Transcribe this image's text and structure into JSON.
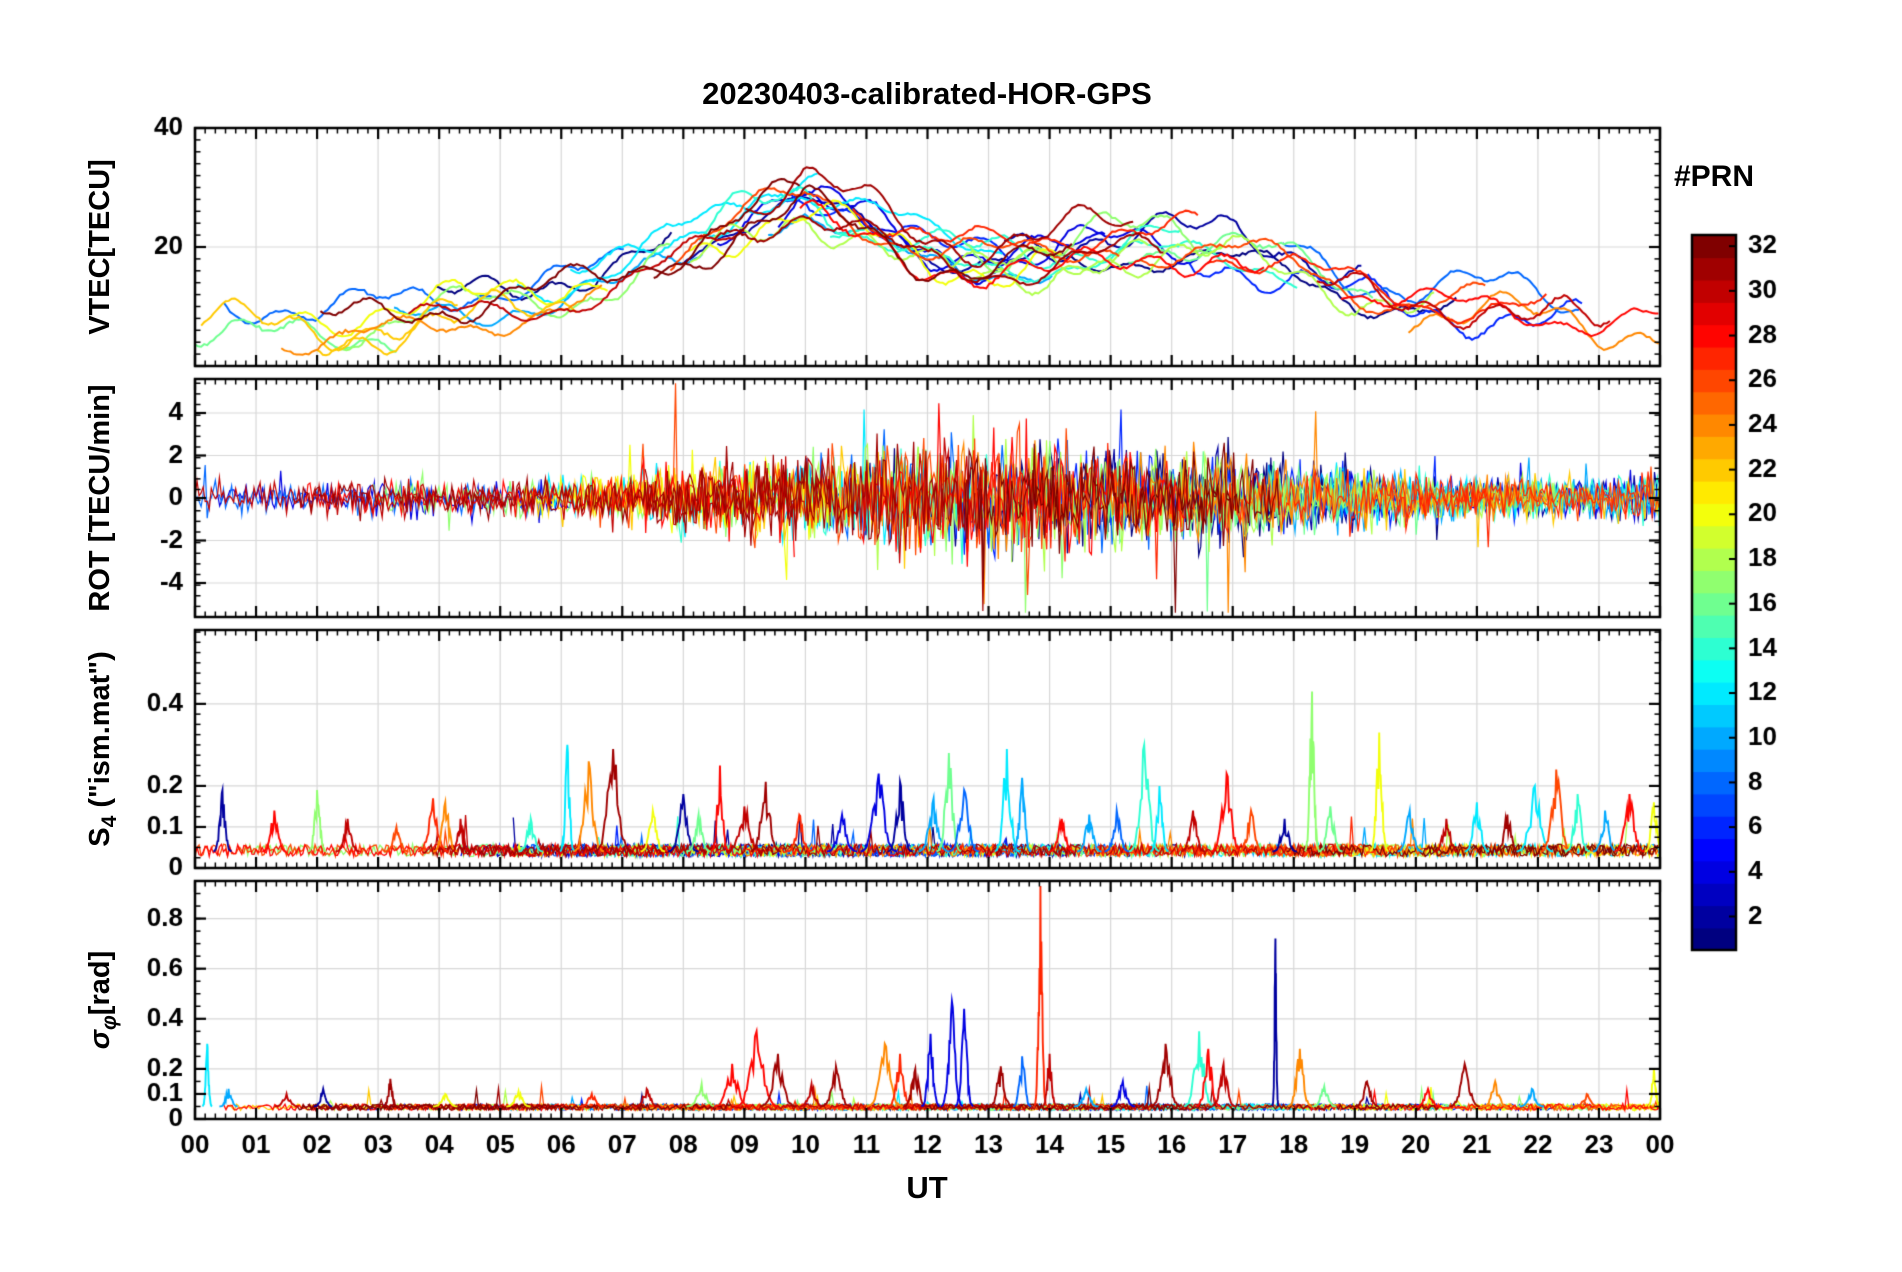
{
  "title": "20230403-calibrated-HOR-GPS",
  "x_axis": {
    "label": "UT",
    "lim": [
      0,
      24
    ],
    "ticks": [
      0,
      1,
      2,
      3,
      4,
      5,
      6,
      7,
      8,
      9,
      10,
      11,
      12,
      13,
      14,
      15,
      16,
      17,
      18,
      19,
      20,
      21,
      22,
      23,
      24
    ],
    "tick_labels": [
      "00",
      "01",
      "02",
      "03",
      "04",
      "05",
      "06",
      "07",
      "08",
      "09",
      "10",
      "11",
      "12",
      "13",
      "14",
      "15",
      "16",
      "17",
      "18",
      "19",
      "20",
      "21",
      "22",
      "23",
      "00"
    ]
  },
  "colorbar": {
    "label": "#PRN",
    "colormap": "jet",
    "range": [
      1,
      32
    ],
    "n_colors": 32,
    "ticks": [
      2,
      4,
      6,
      8,
      10,
      12,
      14,
      16,
      18,
      20,
      22,
      24,
      26,
      28,
      30,
      32
    ]
  },
  "prns_shown": [
    1,
    2,
    4,
    6,
    8,
    10,
    12,
    14,
    16,
    17,
    18,
    20,
    22,
    24,
    26,
    27,
    28,
    30,
    31,
    32
  ],
  "chart_data": [
    {
      "name": "VTEC",
      "type": "line",
      "ylabel": {
        "pre": "VTEC[TECU]",
        "sub": "",
        "post": ""
      },
      "ylim": [
        0,
        40
      ],
      "yticks": [
        0,
        20,
        40
      ],
      "ytick_labels": [
        "",
        "20",
        "40"
      ],
      "hours": [
        0,
        1,
        2,
        3,
        4,
        5,
        6,
        7,
        8,
        9,
        10,
        11,
        12,
        13,
        14,
        15,
        16,
        17,
        18,
        19,
        20,
        21,
        22,
        23,
        24
      ],
      "mean_curve_tecu": [
        10,
        8.5,
        6.5,
        8.5,
        10,
        11,
        12.5,
        15,
        20,
        25.5,
        28.5,
        24,
        19.5,
        18.5,
        19,
        21,
        21.5,
        20.5,
        18,
        14.5,
        12.5,
        12,
        11,
        9.5,
        10
      ],
      "spread_tecu": 4,
      "peak_tecu": 31,
      "peak_hour": 10.3
    },
    {
      "name": "ROT",
      "type": "line",
      "ylabel": {
        "pre": "ROT [TECU/min]",
        "sub": "",
        "post": ""
      },
      "ylim": [
        -5.6,
        5.6
      ],
      "yticks": [
        -4,
        -2,
        0,
        2,
        4
      ],
      "ytick_labels": [
        "-4",
        "-2",
        "0",
        "2",
        "4"
      ],
      "hours": [
        0,
        1,
        2,
        3,
        4,
        5,
        6,
        7,
        8,
        9,
        10,
        11,
        12,
        13,
        14,
        15,
        16,
        17,
        18,
        19,
        20,
        21,
        22,
        23,
        24
      ],
      "std_envelope": [
        1.4,
        1.0,
        0.9,
        1.1,
        1.1,
        1.1,
        1.3,
        1.5,
        2.0,
        2.3,
        2.6,
        3.2,
        3.6,
        3.8,
        3.2,
        3.0,
        3.0,
        2.6,
        2.2,
        1.8,
        1.4,
        1.2,
        1.2,
        1.3,
        1.8
      ]
    },
    {
      "name": "S4",
      "type": "line",
      "ylabel": {
        "pre": "S",
        "sub": "4",
        "post": " (\"ism.mat\")"
      },
      "ylim": [
        0,
        0.58
      ],
      "yticks": [
        0,
        0.1,
        0.2,
        0.4
      ],
      "ytick_labels": [
        "0",
        "0.1",
        "0.2",
        "0.4"
      ],
      "baseline": 0.04,
      "events_format": [
        "hour",
        "peak_value",
        "prn",
        "half_width_hours"
      ],
      "events": [
        [
          0.45,
          0.19,
          2,
          0.15
        ],
        [
          1.3,
          0.14,
          28,
          0.2
        ],
        [
          2.0,
          0.19,
          17,
          0.15
        ],
        [
          2.5,
          0.12,
          30,
          0.2
        ],
        [
          3.3,
          0.1,
          26,
          0.2
        ],
        [
          3.9,
          0.17,
          27,
          0.25
        ],
        [
          4.1,
          0.16,
          24,
          0.2
        ],
        [
          4.35,
          0.12,
          30,
          0.15
        ],
        [
          5.5,
          0.12,
          14,
          0.2
        ],
        [
          6.1,
          0.3,
          12,
          0.12
        ],
        [
          6.45,
          0.26,
          24,
          0.25
        ],
        [
          6.85,
          0.29,
          31,
          0.3
        ],
        [
          7.5,
          0.14,
          20,
          0.2
        ],
        [
          8.0,
          0.18,
          2,
          0.25
        ],
        [
          8.25,
          0.13,
          16,
          0.2
        ],
        [
          8.6,
          0.25,
          28,
          0.15
        ],
        [
          9.0,
          0.15,
          30,
          0.3
        ],
        [
          9.35,
          0.21,
          31,
          0.25
        ],
        [
          9.9,
          0.13,
          27,
          0.2
        ],
        [
          10.6,
          0.13,
          4,
          0.25
        ],
        [
          11.2,
          0.23,
          4,
          0.3
        ],
        [
          11.55,
          0.21,
          2,
          0.2
        ],
        [
          12.1,
          0.17,
          10,
          0.25
        ],
        [
          12.35,
          0.28,
          16,
          0.2
        ],
        [
          12.6,
          0.19,
          8,
          0.25
        ],
        [
          13.3,
          0.29,
          12,
          0.2
        ],
        [
          13.55,
          0.22,
          10,
          0.15
        ],
        [
          14.2,
          0.12,
          28,
          0.2
        ],
        [
          14.65,
          0.13,
          10,
          0.2
        ],
        [
          15.1,
          0.14,
          8,
          0.2
        ],
        [
          15.55,
          0.3,
          14,
          0.25
        ],
        [
          15.8,
          0.2,
          12,
          0.15
        ],
        [
          16.35,
          0.14,
          30,
          0.2
        ],
        [
          16.9,
          0.23,
          28,
          0.25
        ],
        [
          17.3,
          0.14,
          26,
          0.2
        ],
        [
          17.85,
          0.12,
          2,
          0.2
        ],
        [
          18.3,
          0.43,
          17,
          0.12
        ],
        [
          18.6,
          0.15,
          16,
          0.2
        ],
        [
          19.4,
          0.33,
          20,
          0.15
        ],
        [
          19.9,
          0.14,
          10,
          0.2
        ],
        [
          20.5,
          0.12,
          30,
          0.2
        ],
        [
          21.0,
          0.16,
          12,
          0.2
        ],
        [
          21.5,
          0.13,
          31,
          0.2
        ],
        [
          21.95,
          0.2,
          12,
          0.3
        ],
        [
          22.3,
          0.24,
          26,
          0.25
        ],
        [
          22.65,
          0.18,
          14,
          0.2
        ],
        [
          23.1,
          0.14,
          10,
          0.2
        ],
        [
          23.5,
          0.18,
          28,
          0.25
        ],
        [
          23.9,
          0.16,
          20,
          0.15
        ]
      ]
    },
    {
      "name": "sigma_phi",
      "type": "line",
      "ylabel": {
        "pre": "σ",
        "sub": "φ",
        "post": "[rad]"
      },
      "ylim": [
        0,
        0.95
      ],
      "yticks": [
        0,
        0.1,
        0.2,
        0.4,
        0.6,
        0.8
      ],
      "ytick_labels": [
        "0",
        "0.1",
        "0.2",
        "0.4",
        "0.6",
        "0.8"
      ],
      "baseline": 0.05,
      "events_format": [
        "hour",
        "peak_value",
        "prn",
        "half_width_hours"
      ],
      "events": [
        [
          0.2,
          0.3,
          12,
          0.08
        ],
        [
          0.55,
          0.12,
          10,
          0.15
        ],
        [
          1.5,
          0.1,
          30,
          0.2
        ],
        [
          2.1,
          0.12,
          2,
          0.15
        ],
        [
          3.2,
          0.16,
          31,
          0.12
        ],
        [
          4.1,
          0.1,
          20,
          0.2
        ],
        [
          5.3,
          0.11,
          20,
          0.2
        ],
        [
          6.5,
          0.1,
          27,
          0.2
        ],
        [
          7.4,
          0.12,
          30,
          0.2
        ],
        [
          8.3,
          0.14,
          17,
          0.25
        ],
        [
          8.8,
          0.22,
          28,
          0.3
        ],
        [
          9.2,
          0.35,
          28,
          0.35
        ],
        [
          9.55,
          0.26,
          31,
          0.3
        ],
        [
          10.1,
          0.14,
          30,
          0.2
        ],
        [
          10.5,
          0.21,
          31,
          0.25
        ],
        [
          11.3,
          0.3,
          24,
          0.3
        ],
        [
          11.55,
          0.26,
          27,
          0.2
        ],
        [
          11.8,
          0.2,
          31,
          0.2
        ],
        [
          12.05,
          0.34,
          4,
          0.15
        ],
        [
          12.4,
          0.47,
          4,
          0.18
        ],
        [
          12.6,
          0.44,
          4,
          0.15
        ],
        [
          13.2,
          0.21,
          31,
          0.2
        ],
        [
          13.55,
          0.25,
          8,
          0.15
        ],
        [
          13.85,
          0.93,
          27,
          0.1
        ],
        [
          14.0,
          0.26,
          30,
          0.12
        ],
        [
          14.6,
          0.12,
          10,
          0.2
        ],
        [
          15.2,
          0.15,
          4,
          0.2
        ],
        [
          15.9,
          0.3,
          31,
          0.25
        ],
        [
          16.45,
          0.35,
          14,
          0.25
        ],
        [
          16.6,
          0.28,
          28,
          0.2
        ],
        [
          16.85,
          0.22,
          30,
          0.2
        ],
        [
          17.7,
          0.72,
          2,
          0.05
        ],
        [
          18.1,
          0.28,
          24,
          0.2
        ],
        [
          18.5,
          0.13,
          16,
          0.2
        ],
        [
          19.2,
          0.15,
          31,
          0.2
        ],
        [
          20.2,
          0.12,
          28,
          0.2
        ],
        [
          20.8,
          0.22,
          31,
          0.25
        ],
        [
          21.3,
          0.15,
          24,
          0.2
        ],
        [
          21.9,
          0.12,
          10,
          0.2
        ],
        [
          22.8,
          0.1,
          26,
          0.2
        ],
        [
          23.9,
          0.2,
          20,
          0.1
        ]
      ]
    }
  ]
}
